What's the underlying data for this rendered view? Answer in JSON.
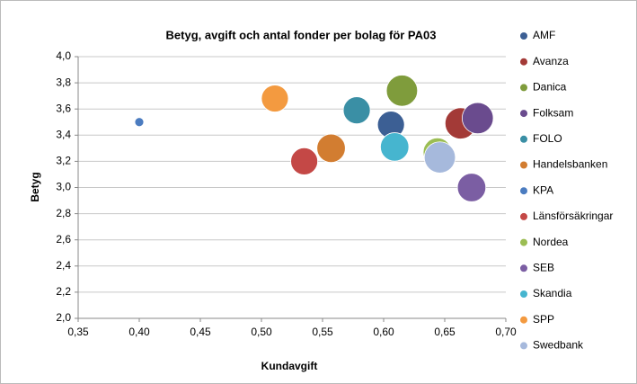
{
  "chart_data": {
    "type": "bubble",
    "title": "Betyg, avgift och antal fonder per bolag för PA03",
    "x_label": "Kundavgift",
    "y_label": "Betyg",
    "xlim": [
      0.35,
      0.7
    ],
    "xticks": [
      {
        "value": 0.35,
        "label": "0,35"
      },
      {
        "value": 0.4,
        "label": "0,40"
      },
      {
        "value": 0.45,
        "label": "0,45"
      },
      {
        "value": 0.5,
        "label": "0,50"
      },
      {
        "value": 0.55,
        "label": "0,55"
      },
      {
        "value": 0.6,
        "label": "0,60"
      },
      {
        "value": 0.65,
        "label": "0,65"
      },
      {
        "value": 0.7,
        "label": "0,70"
      }
    ],
    "ylim": [
      2.0,
      4.0
    ],
    "yticks": [
      {
        "value": 2.0,
        "label": "2,0"
      },
      {
        "value": 2.2,
        "label": "2,2"
      },
      {
        "value": 2.4,
        "label": "2,4"
      },
      {
        "value": 2.6,
        "label": "2,6"
      },
      {
        "value": 2.8,
        "label": "2,8"
      },
      {
        "value": 3.0,
        "label": "3,0"
      },
      {
        "value": 3.2,
        "label": "3,2"
      },
      {
        "value": 3.4,
        "label": "3,4"
      },
      {
        "value": 3.6,
        "label": "3,6"
      },
      {
        "value": 3.8,
        "label": "3,8"
      },
      {
        "value": 4.0,
        "label": "4,0"
      }
    ],
    "grid": true,
    "legend": "right",
    "series": [
      {
        "name": "AMF",
        "color": "#3c5f94",
        "x": 0.606,
        "y": 3.48,
        "size": 9
      },
      {
        "name": "Avanza",
        "color": "#a33a37",
        "x": 0.663,
        "y": 3.49,
        "size": 12
      },
      {
        "name": "Danica",
        "color": "#7f9c3c",
        "x": 0.615,
        "y": 3.74,
        "size": 12
      },
      {
        "name": "Folksam",
        "color": "#6a4b8e",
        "x": 0.677,
        "y": 3.53,
        "size": 12
      },
      {
        "name": "FOLO",
        "color": "#3a8fa5",
        "x": 0.578,
        "y": 3.59,
        "size": 9
      },
      {
        "name": "Handelsbanken",
        "color": "#d27d31",
        "x": 0.557,
        "y": 3.3,
        "size": 10
      },
      {
        "name": "KPA",
        "color": "#4b7cc0",
        "x": 0.4,
        "y": 3.5,
        "size": 1
      },
      {
        "name": "Länsförsäkringar",
        "color": "#c44846",
        "x": 0.535,
        "y": 3.2,
        "size": 9
      },
      {
        "name": "Nordea",
        "color": "#9bbd53",
        "x": 0.644,
        "y": 3.27,
        "size": 10
      },
      {
        "name": "SEB",
        "color": "#7b5ea3",
        "x": 0.672,
        "y": 3.0,
        "size": 10
      },
      {
        "name": "Skandia",
        "color": "#46b5cf",
        "x": 0.609,
        "y": 3.31,
        "size": 10
      },
      {
        "name": "SPP",
        "color": "#f39a40",
        "x": 0.511,
        "y": 3.68,
        "size": 9
      },
      {
        "name": "Swedbank",
        "color": "#a6b9dc",
        "x": 0.646,
        "y": 3.23,
        "size": 12
      }
    ]
  }
}
